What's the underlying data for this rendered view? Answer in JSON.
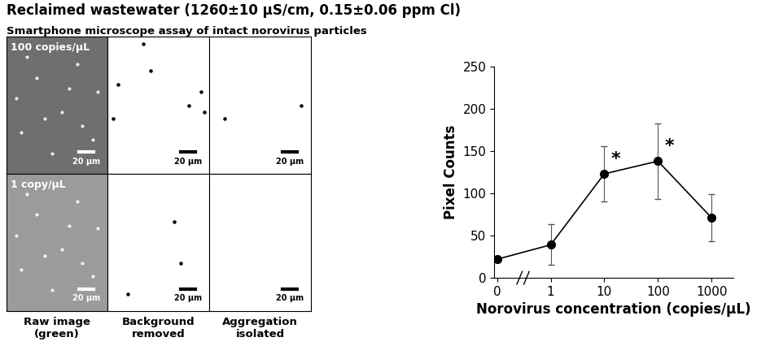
{
  "header": {
    "title": "Reclaimed wastewater (1260±10 μS/cm, 0.15±0.06 ppm Cl)",
    "subtitle": "Smartphone microscope assay of intact norovirus particles"
  },
  "images": {
    "row_labels": [
      "100 copies/μL",
      "1 copy/μL"
    ],
    "column_labels": [
      "Raw image\n(green)",
      "Background\nremoved",
      "Aggregation\nisolated"
    ],
    "scale_bar": "20 μm"
  },
  "chart_data": {
    "type": "line",
    "categories": [
      "0",
      "1",
      "10",
      "100",
      "1000"
    ],
    "values": [
      22,
      39,
      123,
      138,
      71
    ],
    "errors": [
      0,
      24,
      33,
      45,
      28
    ],
    "annotations": [
      {
        "category": "10",
        "text": "*"
      },
      {
        "category": "100",
        "text": "*"
      }
    ],
    "xlabel": "Norovirus concentration (copies/μL)",
    "ylabel": "Pixel Counts",
    "ylim": [
      0,
      250
    ],
    "yticks": [
      0,
      50,
      100,
      150,
      200,
      250
    ],
    "color": "#000000",
    "marker": "o",
    "line_style": "solid",
    "grid": false
  }
}
